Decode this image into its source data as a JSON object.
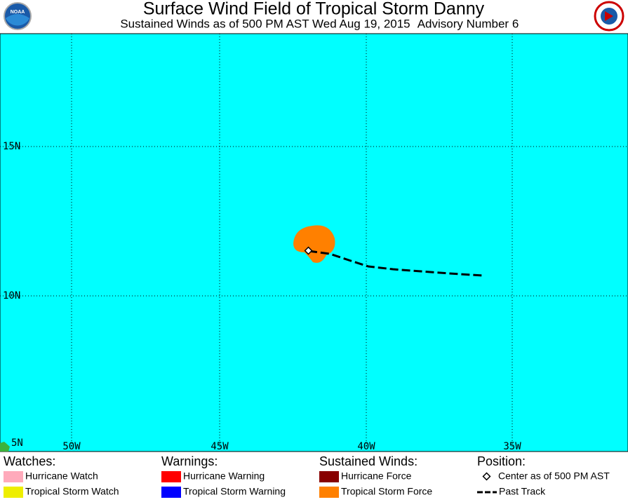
{
  "header": {
    "title": "Surface Wind Field of Tropical Storm Danny",
    "subtitle": "Sustained Winds as of 500 PM AST Wed Aug 19, 2015",
    "advisory": "Advisory Number 6",
    "logo_left": "NOAA"
  },
  "map": {
    "lat_labels": [
      "15N",
      "10N",
      "5N"
    ],
    "lon_labels": [
      "50W",
      "45W",
      "40W",
      "35W"
    ]
  },
  "legend": [
    {
      "heading": "Watches:",
      "items": [
        "Hurricane Watch",
        "Tropical Storm Watch"
      ]
    },
    {
      "heading": "Warnings:",
      "items": [
        "Hurricane Warning",
        "Tropical Storm Warning"
      ]
    },
    {
      "heading": "Sustained Winds:",
      "items": [
        "Hurricane Force",
        "Tropical Storm Force"
      ]
    },
    {
      "heading": "Position:",
      "items": [
        "Center as of 500 PM AST",
        "Past Track"
      ]
    }
  ]
}
